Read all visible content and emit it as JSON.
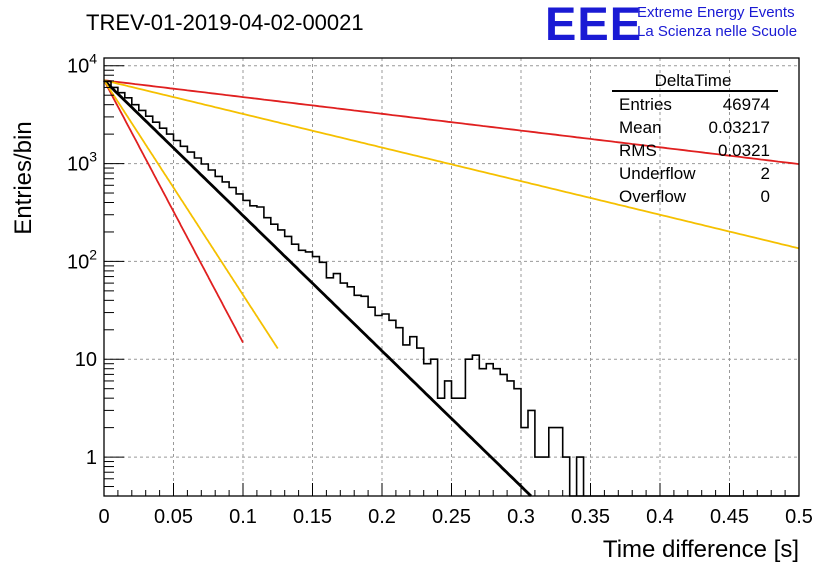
{
  "header": {
    "title": "TREV-01-2019-04-02-00021",
    "logo_mark": "EEE",
    "logo_line1": "Extreme Energy Events",
    "logo_line2": "La Scienza nelle Scuole"
  },
  "stats": {
    "name": "DeltaTime",
    "rows": [
      {
        "label": "Entries",
        "value": "46974"
      },
      {
        "label": "Mean",
        "value": "0.03217"
      },
      {
        "label": "RMS",
        "value": "0.0321"
      },
      {
        "label": "Underflow",
        "value": "2"
      },
      {
        "label": "Overflow",
        "value": "0"
      }
    ]
  },
  "chart_data": {
    "type": "line",
    "xlabel": "Time difference [s]",
    "ylabel": "Entries/bin",
    "xlim": [
      0,
      0.5
    ],
    "ylim": [
      0.4,
      12000
    ],
    "yscale": "log",
    "grid": true,
    "x_ticks": [
      "0",
      "0.05",
      "0.1",
      "0.15",
      "0.2",
      "0.25",
      "0.3",
      "0.35",
      "0.4",
      "0.45",
      "0.5"
    ],
    "y_ticks": [
      {
        "value": 1,
        "label": "1"
      },
      {
        "value": 10,
        "label": "10"
      },
      {
        "value": 100,
        "label": "10^2"
      },
      {
        "value": 1000,
        "label": "10^3"
      },
      {
        "value": 10000,
        "label": "10^4"
      }
    ],
    "histogram": {
      "bin_width": 0.005,
      "values": [
        6900,
        6000,
        5300,
        4700,
        4000,
        3500,
        3050,
        2650,
        2300,
        2000,
        1720,
        1500,
        1310,
        1140,
        990,
        860,
        740,
        650,
        570,
        490,
        420,
        370,
        360,
        280,
        240,
        210,
        180,
        150,
        130,
        125,
        112,
        98,
        68,
        75,
        60,
        55,
        45,
        44,
        34,
        28,
        29,
        25,
        21,
        14,
        17,
        13,
        9,
        10,
        4,
        6,
        4,
        4,
        10,
        11,
        8,
        9,
        8,
        7,
        6,
        5,
        2,
        3,
        1,
        1,
        2,
        2,
        1,
        0,
        0,
        0,
        0,
        0,
        0,
        0,
        0,
        0,
        0,
        0,
        0,
        0,
        0,
        0,
        0,
        0,
        0,
        0,
        0,
        0,
        0,
        0,
        0,
        0,
        0,
        0,
        0,
        0,
        0,
        0,
        0,
        0
      ]
    },
    "extra_bins": [
      {
        "x": 0.34,
        "value": 1
      }
    ],
    "series": [
      {
        "color": "#000000",
        "amplitude": 7100,
        "tau": 0.0314,
        "x_range": [
          0,
          0.315
        ]
      },
      {
        "color": "#e02020",
        "amplitude": 7100,
        "tau": 0.0162,
        "x_range": [
          0,
          0.1
        ]
      },
      {
        "color": "#f5c000",
        "amplitude": 7100,
        "tau": 0.0198,
        "x_range": [
          0,
          0.125
        ]
      },
      {
        "color": "#e02020",
        "amplitude": 7100,
        "tau": 0.2536,
        "x_range": [
          0,
          0.5
        ]
      },
      {
        "color": "#f5c000",
        "amplitude": 7100,
        "tau": 0.1264,
        "x_range": [
          0,
          0.5
        ]
      }
    ]
  }
}
